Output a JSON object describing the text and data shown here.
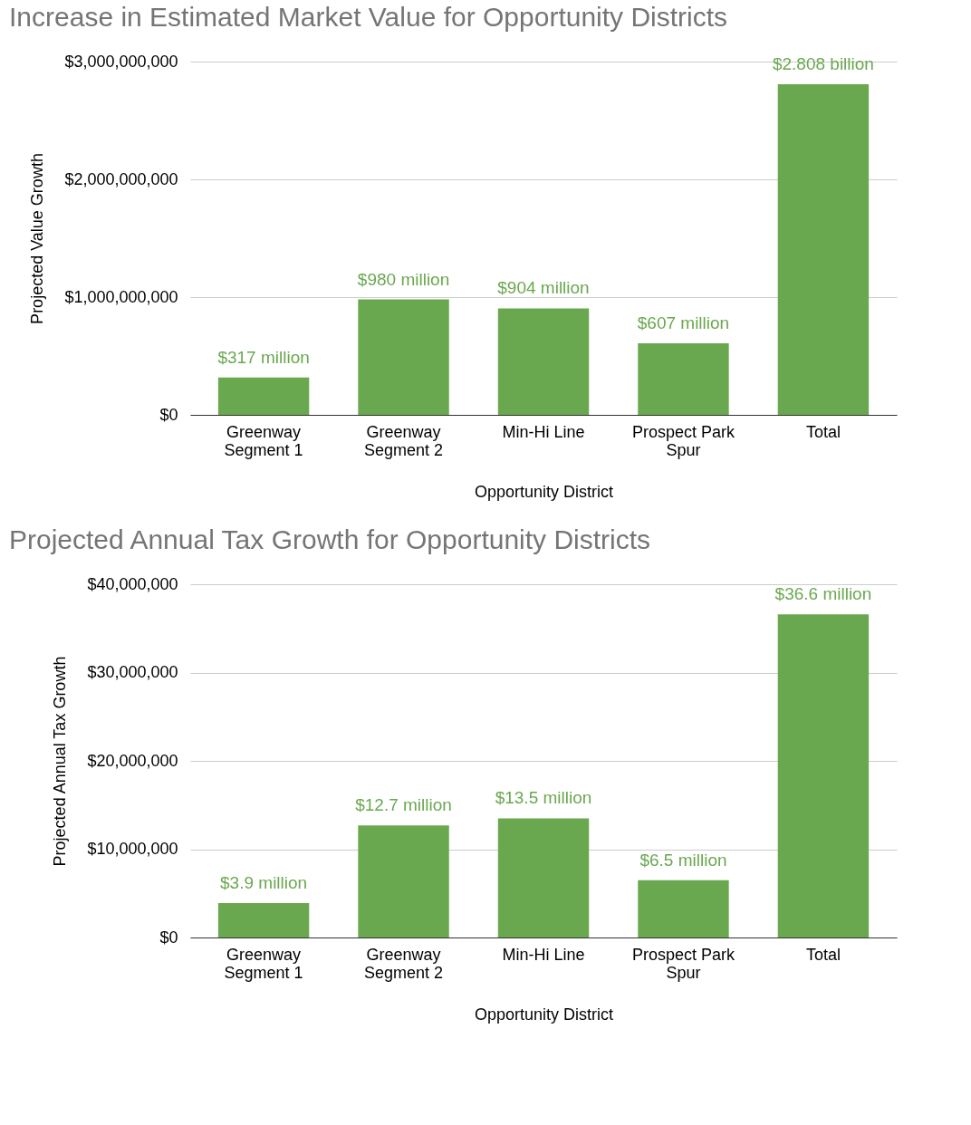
{
  "chart_data": [
    {
      "type": "bar",
      "title": "Increase in Estimated Market Value for Opportunity Districts",
      "xlabel": "Opportunity District",
      "ylabel": "Projected Value Growth",
      "categories": [
        "Greenway Segment 1",
        "Greenway Segment 2",
        "Min-Hi Line",
        "Prospect Park Spur",
        "Total"
      ],
      "values": [
        317000000,
        980000000,
        904000000,
        607000000,
        2808000000
      ],
      "value_labels": [
        "$317 million",
        "$980 million",
        "$904 million",
        "$607 million",
        "$2.808 billion"
      ],
      "color": "#6aa84f",
      "ylim": [
        0,
        3000000000
      ],
      "yticks": [
        {
          "value": 0,
          "label": "$0"
        },
        {
          "value": 1000000000,
          "label": "$1,000,000,000"
        },
        {
          "value": 2000000000,
          "label": "$2,000,000,000"
        },
        {
          "value": 3000000000,
          "label": "$3,000,000,000"
        }
      ],
      "grid": "y"
    },
    {
      "type": "bar",
      "title": "Projected Annual Tax Growth for Opportunity Districts",
      "xlabel": "Opportunity District",
      "ylabel": "Projected Annual Tax Growth",
      "categories": [
        "Greenway Segment 1",
        "Greenway Segment 2",
        "Min-Hi Line",
        "Prospect Park Spur",
        "Total"
      ],
      "values": [
        3900000,
        12700000,
        13500000,
        6500000,
        36600000
      ],
      "value_labels": [
        "$3.9 million",
        "$12.7 million",
        "$13.5 million",
        "$6.5 million",
        "$36.6 million"
      ],
      "color": "#6aa84f",
      "ylim": [
        0,
        40000000
      ],
      "yticks": [
        {
          "value": 0,
          "label": "$0"
        },
        {
          "value": 10000000,
          "label": "$10,000,000"
        },
        {
          "value": 20000000,
          "label": "$20,000,000"
        },
        {
          "value": 30000000,
          "label": "$30,000,000"
        },
        {
          "value": 40000000,
          "label": "$40,000,000"
        }
      ],
      "grid": "y"
    }
  ]
}
